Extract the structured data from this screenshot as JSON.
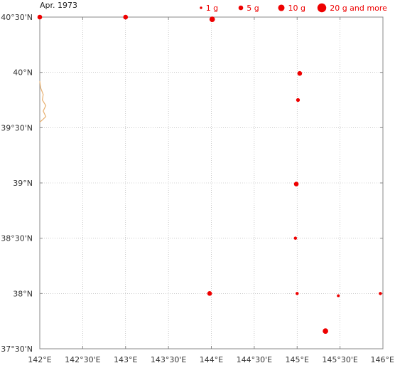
{
  "title": "Apr. 1973",
  "colors": {
    "marker": "#ee0000",
    "coast": "#e8b070",
    "grid": "#aaaaaa",
    "frame": "#888888"
  },
  "map": {
    "lon_range": [
      142.0,
      146.0
    ],
    "lat_range": [
      37.5,
      40.5
    ],
    "lon_ticks": [
      {
        "value": 142.0,
        "label": "142°E"
      },
      {
        "value": 142.5,
        "label": "142°30'E"
      },
      {
        "value": 143.0,
        "label": "143°E"
      },
      {
        "value": 143.5,
        "label": "143°30'E"
      },
      {
        "value": 144.0,
        "label": "144°E"
      },
      {
        "value": 144.5,
        "label": "144°30'E"
      },
      {
        "value": 145.0,
        "label": "145°E"
      },
      {
        "value": 145.5,
        "label": "145°30'E"
      },
      {
        "value": 146.0,
        "label": "146°E"
      }
    ],
    "lat_ticks": [
      {
        "value": 40.5,
        "label": "40°30'N"
      },
      {
        "value": 40.0,
        "label": "40°N"
      },
      {
        "value": 39.5,
        "label": "39°30'N"
      },
      {
        "value": 39.0,
        "label": "39°N"
      },
      {
        "value": 38.5,
        "label": "38°30'N"
      },
      {
        "value": 38.0,
        "label": "38°N"
      },
      {
        "value": 37.5,
        "label": "37°30'N"
      }
    ],
    "coastline": [
      [
        142.0,
        39.92
      ],
      [
        142.01,
        39.86
      ],
      [
        142.04,
        39.8
      ],
      [
        142.03,
        39.75
      ],
      [
        142.07,
        39.7
      ],
      [
        142.04,
        39.65
      ],
      [
        142.07,
        39.6
      ],
      [
        142.03,
        39.57
      ],
      [
        142.0,
        39.55
      ]
    ]
  },
  "legend": [
    {
      "label": "1 g",
      "grams": 1
    },
    {
      "label": "5 g",
      "grams": 5
    },
    {
      "label": "10 g",
      "grams": 10
    },
    {
      "label": "20 g and more",
      "grams": 20
    }
  ],
  "chart_data": {
    "type": "scatter",
    "title": "Apr. 1973",
    "xlabel": "",
    "ylabel": "",
    "xlim": [
      142.0,
      146.0
    ],
    "ylim": [
      37.5,
      40.5
    ],
    "points": [
      {
        "lon": 142.0,
        "lat": 40.5,
        "grams": 5
      },
      {
        "lon": 143.0,
        "lat": 40.5,
        "grams": 5
      },
      {
        "lon": 144.01,
        "lat": 40.48,
        "grams": 7
      },
      {
        "lon": 145.03,
        "lat": 39.99,
        "grams": 5
      },
      {
        "lon": 145.01,
        "lat": 39.75,
        "grams": 3
      },
      {
        "lon": 144.99,
        "lat": 38.99,
        "grams": 5
      },
      {
        "lon": 144.98,
        "lat": 38.5,
        "grams": 2
      },
      {
        "lon": 143.98,
        "lat": 38.0,
        "grams": 5
      },
      {
        "lon": 145.0,
        "lat": 38.0,
        "grams": 2
      },
      {
        "lon": 145.48,
        "lat": 37.98,
        "grams": 1.5
      },
      {
        "lon": 145.97,
        "lat": 38.0,
        "grams": 2
      },
      {
        "lon": 145.33,
        "lat": 37.66,
        "grams": 7
      }
    ]
  }
}
